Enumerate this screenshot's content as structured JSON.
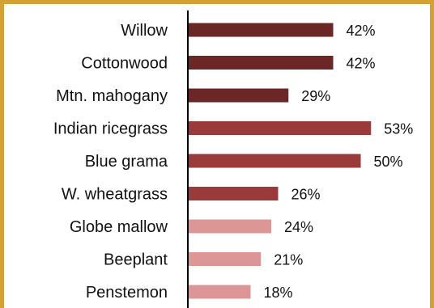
{
  "chart_data": {
    "type": "bar",
    "orientation": "horizontal",
    "title": "",
    "xlabel": "",
    "ylabel": "",
    "categories": [
      "Willow",
      "Cottonwood",
      "Mtn. mahogany",
      "Indian ricegrass",
      "Blue grama",
      "W. wheatgrass",
      "Globe mallow",
      "Beeplant",
      "Penstemon"
    ],
    "values": [
      42,
      42,
      29,
      53,
      50,
      26,
      24,
      21,
      18
    ],
    "value_labels": [
      "42%",
      "42%",
      "29%",
      "53%",
      "50%",
      "26%",
      "24%",
      "21%",
      "18%"
    ],
    "bar_colors": [
      "#6B2626",
      "#6B2626",
      "#6B2626",
      "#9A3A3A",
      "#9A3A3A",
      "#9A3A3A",
      "#DC9696",
      "#DC9696",
      "#DC9696"
    ],
    "value_unit": "%",
    "grid": false,
    "legend": "none"
  },
  "colors": {
    "frame_border": "#D4A135",
    "axis": "#000000"
  }
}
